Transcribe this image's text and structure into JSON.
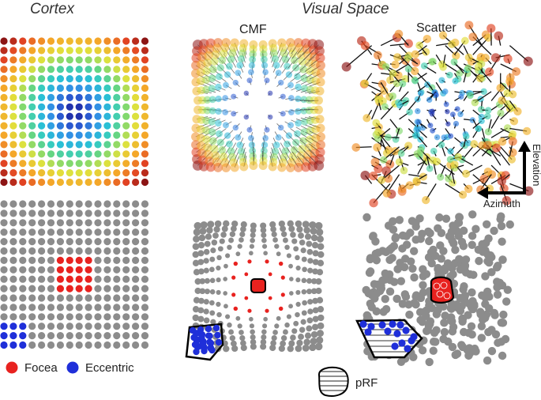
{
  "headers": {
    "cortex": "Cortex",
    "visual_space": "Visual Space",
    "cmf": "CMF",
    "scatter": "Scatter"
  },
  "axes": {
    "elevation": "Elevation",
    "azimuth": "Azimuth"
  },
  "legend": {
    "fovea": "Focea",
    "eccentric": "Eccentric",
    "prf": "pRF"
  },
  "colors": {
    "fovea": "#e8221f",
    "eccentric": "#1f2fd9",
    "neutral": "#8c8c8c",
    "outline": "#000000"
  },
  "grid": {
    "size": 16
  }
}
